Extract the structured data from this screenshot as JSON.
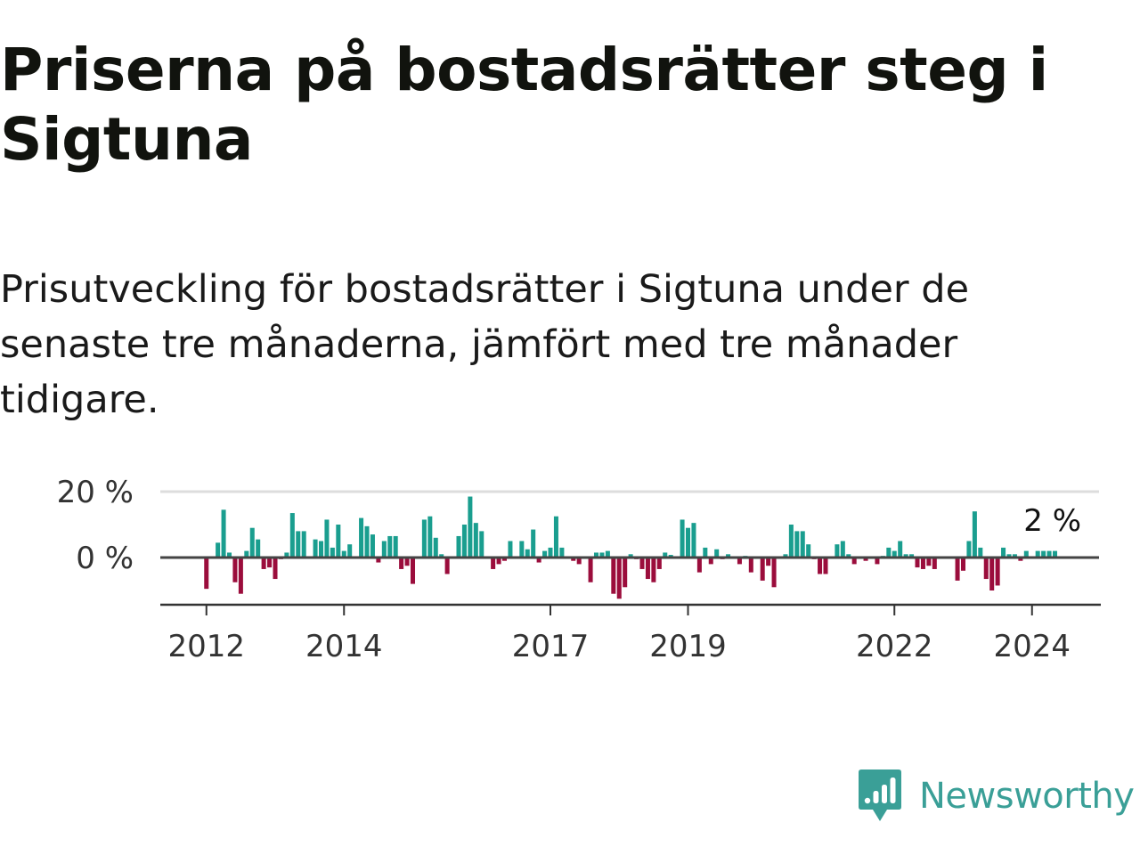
{
  "headline": "Priserna på bostadsrätter steg i Sigtuna",
  "subheadline": "Prisutveckling för bostadsrätter i Sigtuna under de senaste tre månaderna, jämfört med tre månader tidigare.",
  "brand": {
    "name": "Newsworthy",
    "color": "#3a9f97"
  },
  "colors": {
    "positive": "#1a9e8f",
    "negative": "#9b0d3c",
    "grid": "#dddddd",
    "axis": "#333333"
  },
  "chart_data": {
    "type": "bar",
    "title": "Priserna på bostadsrätter steg i Sigtuna",
    "subtitle": "Prisutveckling för bostadsrätter i Sigtuna under de senaste tre månaderna, jämfört med tre månader tidigare.",
    "xlabel": "",
    "ylabel": "",
    "unit": "%",
    "ylim": [
      -15,
      22
    ],
    "y_ticks": [
      {
        "value": 0,
        "label": "0 %"
      },
      {
        "value": 20,
        "label": "20 %"
      }
    ],
    "x_range": [
      2011.33,
      2025.0
    ],
    "x_ticks": [
      {
        "value": 2012,
        "label": "2012"
      },
      {
        "value": 2014,
        "label": "2014"
      },
      {
        "value": 2017,
        "label": "2017"
      },
      {
        "value": 2019,
        "label": "2019"
      },
      {
        "value": 2022,
        "label": "2022"
      },
      {
        "value": 2024,
        "label": "2024"
      }
    ],
    "start_year": 2012,
    "start_month": 1,
    "annotation": {
      "text": "2 %",
      "value": 2
    },
    "values": [
      -9.5,
      0,
      4.5,
      14.5,
      1.5,
      -7.5,
      -11,
      2,
      9,
      5.5,
      -3.5,
      -3,
      -6.5,
      -0.5,
      1.5,
      13.5,
      8,
      8,
      0,
      5.5,
      5,
      11.5,
      3,
      10,
      2,
      4,
      -0.3,
      12,
      9.5,
      7,
      -1.5,
      5,
      6.5,
      6.5,
      -3.5,
      -2.5,
      -8,
      0,
      11.5,
      12.5,
      6,
      1,
      -5,
      0,
      6.5,
      10,
      18.5,
      10.5,
      8,
      0,
      -3.5,
      -2,
      -1,
      5,
      0,
      5,
      2.5,
      8.5,
      -1.5,
      2,
      3,
      12.5,
      3,
      0,
      -1,
      -2,
      0,
      -7.5,
      1.5,
      1.5,
      2,
      -11,
      -12.5,
      -9,
      1,
      -0.5,
      -3.5,
      -6.5,
      -7.5,
      -3.5,
      1.5,
      0.8,
      0,
      11.5,
      9,
      10.5,
      -4.5,
      3,
      -2,
      2.5,
      -0.5,
      1,
      0,
      -2,
      0.5,
      -4.5,
      0,
      -7,
      -2.5,
      -9,
      0,
      1,
      10,
      8,
      8,
      4,
      -0.5,
      -5,
      -5,
      0,
      4,
      5,
      1,
      -2,
      0,
      -1,
      0,
      -2,
      0.5,
      3,
      2,
      5,
      1,
      1,
      -3,
      -3.5,
      -2.5,
      -3.5,
      0,
      0,
      0,
      -7,
      -4,
      5,
      14,
      3,
      -6.5,
      -10,
      -8.5,
      3,
      1,
      1,
      -1,
      2,
      0,
      2,
      2,
      2,
      2
    ]
  }
}
